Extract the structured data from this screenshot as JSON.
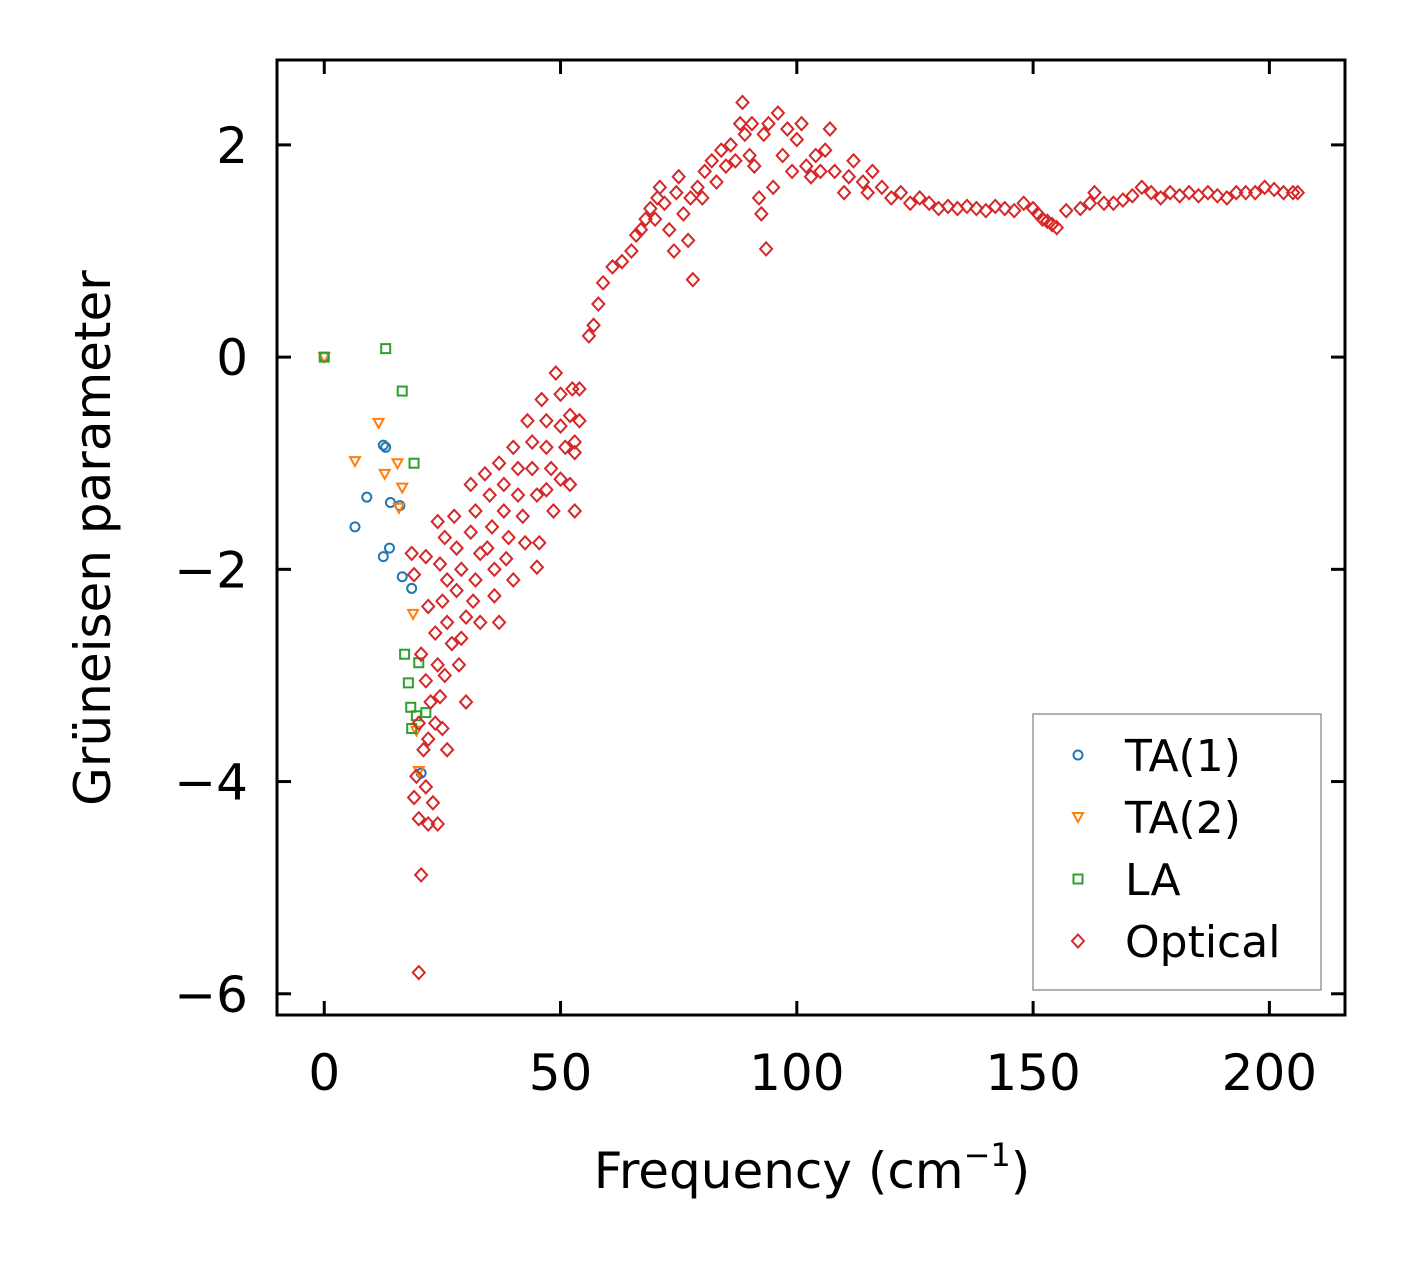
{
  "chart_data": {
    "type": "scatter",
    "title": "",
    "xlabel": "Frequency (cm",
    "xlabel_sup": "−1",
    "xlabel_close": ")",
    "ylabel": "Grüneisen parameter",
    "xlim": [
      -10,
      216
    ],
    "ylim": [
      -6.2,
      2.8
    ],
    "xticks": [
      0,
      50,
      100,
      150,
      200
    ],
    "xtick_labels": [
      "0",
      "50",
      "100",
      "150",
      "200"
    ],
    "yticks": [
      -6,
      -4,
      -2,
      0,
      2
    ],
    "ytick_labels": [
      "−6",
      "−4",
      "−2",
      "0",
      "2"
    ],
    "legend_position": "lower-right",
    "series": [
      {
        "name": "TA(1)",
        "marker": "circle",
        "color": "#1f77b4",
        "points": [
          [
            0,
            0
          ],
          [
            6.5,
            -1.6
          ],
          [
            9,
            -1.32
          ],
          [
            12.5,
            -0.83
          ],
          [
            13,
            -0.85
          ],
          [
            14,
            -1.37
          ],
          [
            16,
            -1.4
          ],
          [
            12.5,
            -1.88
          ],
          [
            13.8,
            -1.8
          ],
          [
            16.5,
            -2.07
          ],
          [
            18.5,
            -2.18
          ],
          [
            20.5,
            -3.92
          ]
        ]
      },
      {
        "name": "TA(2)",
        "marker": "triangle-down",
        "color": "#ff7f0e",
        "points": [
          [
            0,
            0
          ],
          [
            6.5,
            -0.98
          ],
          [
            11.5,
            -0.62
          ],
          [
            12.8,
            -1.1
          ],
          [
            15.5,
            -1.0
          ],
          [
            16.5,
            -1.23
          ],
          [
            15.8,
            -1.42
          ],
          [
            18.8,
            -2.42
          ],
          [
            19.5,
            -3.52
          ],
          [
            20,
            -3.9
          ]
        ]
      },
      {
        "name": "LA",
        "marker": "square",
        "color": "#2ca02c",
        "points": [
          [
            0,
            0
          ],
          [
            13,
            0.08
          ],
          [
            16.5,
            -0.32
          ],
          [
            19,
            -1.0
          ],
          [
            17,
            -2.8
          ],
          [
            20,
            -2.88
          ],
          [
            17.8,
            -3.07
          ],
          [
            18.3,
            -3.3
          ],
          [
            19.5,
            -3.38
          ],
          [
            21.5,
            -3.35
          ],
          [
            18.5,
            -3.5
          ]
        ]
      },
      {
        "name": "Optical",
        "marker": "diamond",
        "color": "#d62728",
        "points": [
          [
            18.5,
            -1.85
          ],
          [
            21.5,
            -1.88
          ],
          [
            19,
            -2.05
          ],
          [
            22,
            -2.35
          ],
          [
            23.5,
            -2.6
          ],
          [
            20.5,
            -2.8
          ],
          [
            21.5,
            -3.05
          ],
          [
            22.5,
            -3.25
          ],
          [
            20,
            -3.45
          ],
          [
            22,
            -3.6
          ],
          [
            21,
            -3.7
          ],
          [
            19.5,
            -3.95
          ],
          [
            19,
            -4.15
          ],
          [
            21.5,
            -4.05
          ],
          [
            23,
            -4.2
          ],
          [
            22,
            -4.4
          ],
          [
            20,
            -4.35
          ],
          [
            24,
            -4.4
          ],
          [
            20.5,
            -4.88
          ],
          [
            20,
            -5.8
          ],
          [
            24,
            -1.55
          ],
          [
            25.5,
            -1.7
          ],
          [
            24.5,
            -1.95
          ],
          [
            26,
            -2.1
          ],
          [
            25,
            -2.3
          ],
          [
            26,
            -2.5
          ],
          [
            27,
            -2.7
          ],
          [
            24,
            -2.9
          ],
          [
            25.5,
            -3.0
          ],
          [
            24.5,
            -3.2
          ],
          [
            23.5,
            -3.45
          ],
          [
            25,
            -3.5
          ],
          [
            26,
            -3.7
          ],
          [
            27.5,
            -1.5
          ],
          [
            28,
            -1.8
          ],
          [
            29,
            -2.0
          ],
          [
            28,
            -2.2
          ],
          [
            30,
            -2.45
          ],
          [
            29,
            -2.65
          ],
          [
            28.5,
            -2.9
          ],
          [
            30,
            -3.25
          ],
          [
            31,
            -1.2
          ],
          [
            32,
            -1.45
          ],
          [
            31,
            -1.65
          ],
          [
            33,
            -1.85
          ],
          [
            32,
            -2.1
          ],
          [
            31.5,
            -2.3
          ],
          [
            33,
            -2.5
          ],
          [
            34,
            -1.1
          ],
          [
            35,
            -1.3
          ],
          [
            35.5,
            -1.6
          ],
          [
            34.5,
            -1.8
          ],
          [
            36,
            -2.0
          ],
          [
            36,
            -2.25
          ],
          [
            37,
            -2.5
          ],
          [
            37,
            -1.0
          ],
          [
            38,
            -1.2
          ],
          [
            38,
            -1.45
          ],
          [
            39,
            -1.7
          ],
          [
            38.5,
            -1.9
          ],
          [
            40,
            -2.1
          ],
          [
            40,
            -0.85
          ],
          [
            41,
            -1.05
          ],
          [
            41,
            -1.3
          ],
          [
            42,
            -1.5
          ],
          [
            42.5,
            -1.75
          ],
          [
            43,
            -0.6
          ],
          [
            44,
            -0.8
          ],
          [
            44,
            -1.05
          ],
          [
            45,
            -1.3
          ],
          [
            45.5,
            -1.75
          ],
          [
            45,
            -1.98
          ],
          [
            46,
            -0.4
          ],
          [
            47,
            -0.6
          ],
          [
            47,
            -0.85
          ],
          [
            48,
            -1.05
          ],
          [
            47,
            -1.25
          ],
          [
            48.5,
            -1.45
          ],
          [
            49,
            -0.15
          ],
          [
            50,
            -0.35
          ],
          [
            50,
            -0.65
          ],
          [
            51,
            -0.85
          ],
          [
            50,
            -1.15
          ],
          [
            52.5,
            -0.3
          ],
          [
            52,
            -0.55
          ],
          [
            53,
            -0.8
          ],
          [
            52,
            -1.2
          ],
          [
            53,
            -1.45
          ],
          [
            54,
            -0.3
          ],
          [
            54,
            -0.6
          ],
          [
            53,
            -0.9
          ],
          [
            56,
            0.2
          ],
          [
            57,
            0.3
          ],
          [
            58,
            0.5
          ],
          [
            59,
            0.7
          ],
          [
            61,
            0.85
          ],
          [
            63,
            0.9
          ],
          [
            65,
            1.0
          ],
          [
            66,
            1.15
          ],
          [
            67,
            1.2
          ],
          [
            68,
            1.3
          ],
          [
            69,
            1.4
          ],
          [
            70,
            1.3
          ],
          [
            70.5,
            1.5
          ],
          [
            71,
            1.6
          ],
          [
            72,
            1.45
          ],
          [
            73,
            1.2
          ],
          [
            74,
            1.0
          ],
          [
            74.5,
            1.55
          ],
          [
            75,
            1.7
          ],
          [
            76,
            1.35
          ],
          [
            77,
            1.1
          ],
          [
            77.5,
            1.5
          ],
          [
            78,
            0.73
          ],
          [
            79,
            1.6
          ],
          [
            80,
            1.5
          ],
          [
            80.5,
            1.75
          ],
          [
            82,
            1.85
          ],
          [
            83,
            1.65
          ],
          [
            84,
            1.95
          ],
          [
            85,
            1.8
          ],
          [
            86,
            2.0
          ],
          [
            87,
            1.85
          ],
          [
            88,
            2.2
          ],
          [
            88.5,
            2.4
          ],
          [
            89,
            2.1
          ],
          [
            90,
            1.9
          ],
          [
            90.5,
            2.2
          ],
          [
            91,
            1.8
          ],
          [
            92,
            1.5
          ],
          [
            92.5,
            1.35
          ],
          [
            93,
            2.1
          ],
          [
            93.5,
            1.02
          ],
          [
            94,
            2.2
          ],
          [
            95,
            1.6
          ],
          [
            96,
            2.3
          ],
          [
            97,
            1.9
          ],
          [
            98,
            2.15
          ],
          [
            99,
            1.75
          ],
          [
            100,
            2.05
          ],
          [
            101,
            2.2
          ],
          [
            102,
            1.8
          ],
          [
            103,
            1.7
          ],
          [
            104,
            1.9
          ],
          [
            105,
            1.75
          ],
          [
            106,
            1.95
          ],
          [
            107,
            2.15
          ],
          [
            108,
            1.75
          ],
          [
            110,
            1.55
          ],
          [
            111,
            1.7
          ],
          [
            112,
            1.85
          ],
          [
            114,
            1.65
          ],
          [
            115,
            1.55
          ],
          [
            116,
            1.75
          ],
          [
            118,
            1.6
          ],
          [
            120,
            1.5
          ],
          [
            122,
            1.55
          ],
          [
            124,
            1.45
          ],
          [
            126,
            1.5
          ],
          [
            128,
            1.45
          ],
          [
            130,
            1.4
          ],
          [
            132,
            1.42
          ],
          [
            134,
            1.4
          ],
          [
            136,
            1.42
          ],
          [
            138,
            1.4
          ],
          [
            140,
            1.38
          ],
          [
            142,
            1.42
          ],
          [
            144,
            1.4
          ],
          [
            146,
            1.38
          ],
          [
            148,
            1.45
          ],
          [
            150,
            1.4
          ],
          [
            151,
            1.35
          ],
          [
            152,
            1.3
          ],
          [
            153,
            1.28
          ],
          [
            154,
            1.25
          ],
          [
            155,
            1.22
          ],
          [
            157,
            1.38
          ],
          [
            160,
            1.4
          ],
          [
            162,
            1.45
          ],
          [
            163,
            1.55
          ],
          [
            165,
            1.45
          ],
          [
            167,
            1.45
          ],
          [
            169,
            1.48
          ],
          [
            171,
            1.52
          ],
          [
            173,
            1.6
          ],
          [
            175,
            1.55
          ],
          [
            177,
            1.5
          ],
          [
            179,
            1.55
          ],
          [
            181,
            1.52
          ],
          [
            183,
            1.55
          ],
          [
            185,
            1.52
          ],
          [
            187,
            1.55
          ],
          [
            189,
            1.52
          ],
          [
            191,
            1.5
          ],
          [
            193,
            1.55
          ],
          [
            195,
            1.55
          ],
          [
            197,
            1.55
          ],
          [
            199,
            1.6
          ],
          [
            201,
            1.58
          ],
          [
            203,
            1.55
          ],
          [
            205,
            1.55
          ],
          [
            206,
            1.55
          ]
        ]
      }
    ]
  }
}
